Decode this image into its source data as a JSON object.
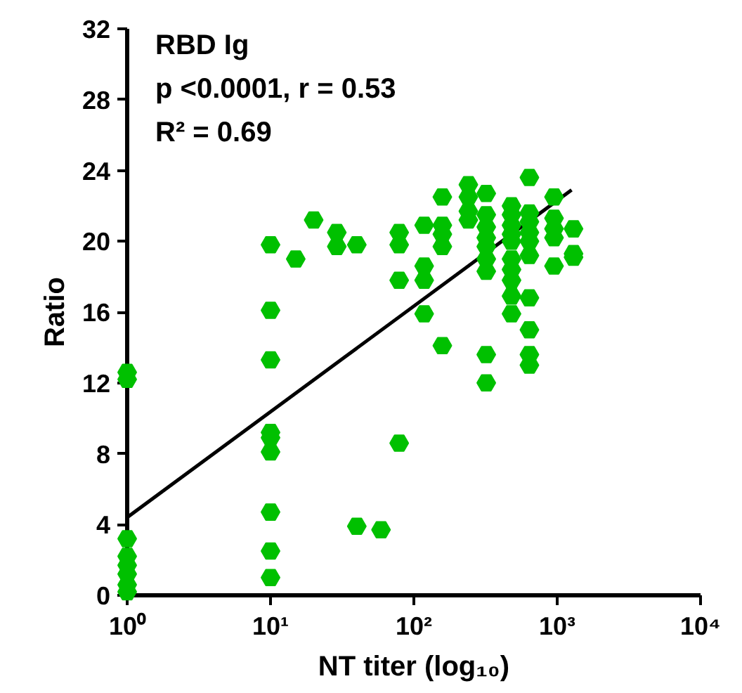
{
  "chart_data": {
    "type": "scatter",
    "xlabel": "NT titer (log₁₀)",
    "ylabel": "Ratio",
    "annotations": [
      "RBD Ig",
      "p <0.0001, r = 0.53",
      "R² = 0.69"
    ],
    "log": "x",
    "grid": false,
    "xlim": [
      1,
      10000
    ],
    "ylim": [
      0,
      32
    ],
    "xticks": [
      {
        "value": 1,
        "label": "10⁰"
      },
      {
        "value": 10,
        "label": "10¹"
      },
      {
        "value": 100,
        "label": "10²"
      },
      {
        "value": 1000,
        "label": "10³"
      },
      {
        "value": 10000,
        "label": "10⁴"
      }
    ],
    "yticks": [
      0,
      4,
      8,
      12,
      16,
      20,
      24,
      28,
      32
    ],
    "series": [
      {
        "color": "#00c000",
        "marker": "circle",
        "x": [
          1,
          1,
          1,
          1,
          1,
          1,
          1,
          1,
          10,
          10,
          10,
          10,
          10,
          10,
          10,
          10,
          10,
          15,
          20,
          29,
          29,
          40,
          40,
          59,
          79,
          79,
          79,
          79,
          118,
          118,
          118,
          118,
          158,
          158,
          158,
          158,
          158,
          240,
          240,
          240,
          240,
          320,
          320,
          320,
          320,
          320,
          320,
          320,
          320,
          320,
          480,
          480,
          480,
          480,
          480,
          480,
          480,
          480,
          480,
          480,
          640,
          640,
          640,
          640,
          640,
          640,
          640,
          640,
          640,
          640,
          950,
          950,
          950,
          950,
          950,
          1300,
          1300,
          1300
        ],
        "values": [
          12.6,
          12.2,
          3.2,
          2.2,
          1.7,
          1.2,
          0.6,
          0.2,
          19.8,
          16.1,
          13.3,
          9.2,
          8.9,
          8.1,
          4.7,
          2.5,
          1.0,
          19.0,
          21.2,
          20.5,
          19.7,
          19.8,
          3.9,
          3.7,
          20.5,
          19.8,
          17.8,
          8.6,
          20.9,
          18.6,
          17.8,
          15.9,
          22.5,
          20.9,
          20.4,
          19.7,
          14.1,
          23.2,
          22.5,
          21.7,
          21.2,
          22.7,
          21.5,
          20.8,
          20.2,
          19.7,
          19.0,
          18.3,
          13.6,
          12.0,
          22.0,
          21.5,
          20.9,
          20.4,
          20.0,
          19.0,
          18.4,
          17.8,
          16.9,
          15.9,
          23.6,
          21.6,
          21.1,
          20.5,
          20.0,
          19.2,
          16.8,
          15.0,
          13.6,
          13.0,
          22.5,
          21.3,
          20.7,
          20.2,
          18.6,
          20.7,
          19.3,
          19.1
        ]
      },
      {
        "type": "line",
        "marker": "none",
        "color": "#000000",
        "x": [
          1,
          1260
        ],
        "values": [
          4.4,
          22.9
        ]
      }
    ]
  }
}
